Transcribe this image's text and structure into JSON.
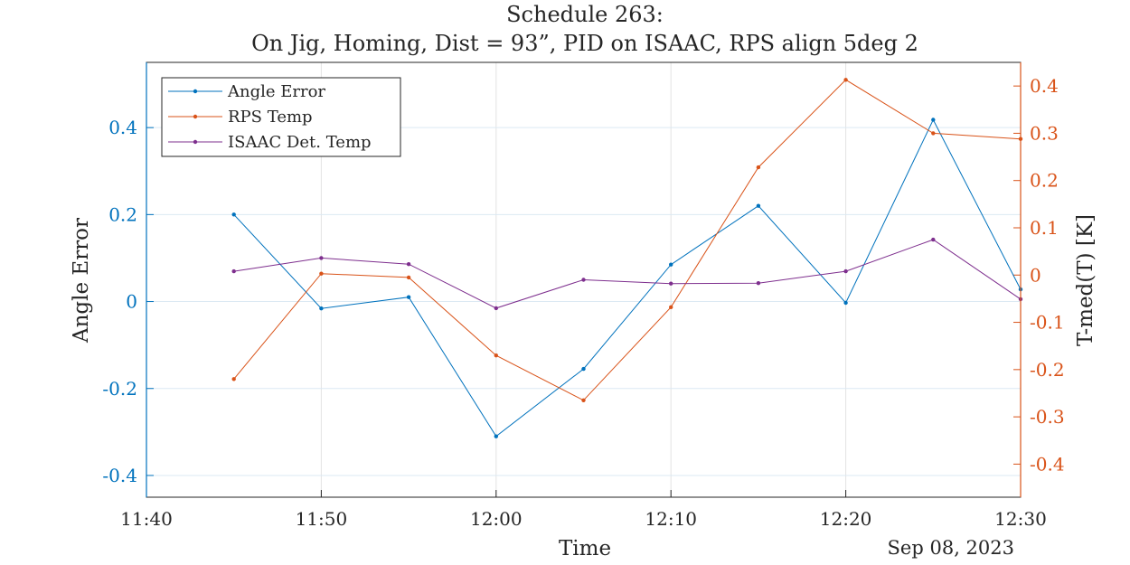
{
  "chart_data": {
    "type": "line",
    "title": "Schedule 263:",
    "subtitle": "On Jig, Homing, Dist = 93”, PID on ISAAC, RPS align 5deg 2",
    "xlabel": "Time",
    "date_label": "Sep 08, 2023",
    "x_ticks": [
      "11:40",
      "11:50",
      "12:00",
      "12:10",
      "12:20",
      "12:30"
    ],
    "xlim": [
      "11:40",
      "12:30"
    ],
    "x": [
      "11:45",
      "11:50",
      "11:55",
      "12:00",
      "12:05",
      "12:10",
      "12:15",
      "12:20",
      "12:25",
      "12:30"
    ],
    "left_axis": {
      "label": "Angle Error",
      "color": "#0072BD",
      "ylim": [
        -0.45,
        0.55
      ],
      "ticks": [
        -0.4,
        -0.2,
        0,
        0.2,
        0.4
      ],
      "tick_labels": [
        "-0.4",
        "-0.2",
        "0",
        "0.2",
        "0.4"
      ]
    },
    "right_axis": {
      "label": "T-med(T) [K]",
      "color": "#D95319",
      "ylim": [
        -0.47,
        0.45
      ],
      "ticks": [
        -0.4,
        -0.3,
        -0.2,
        -0.1,
        0,
        0.1,
        0.2,
        0.3,
        0.4
      ],
      "tick_labels": [
        "-0.4",
        "-0.3",
        "-0.2",
        "-0.1",
        "0",
        "0.1",
        "0.2",
        "0.3",
        "0.4"
      ]
    },
    "series": [
      {
        "name": "Angle Error",
        "axis": "left",
        "color": "#0072BD",
        "values": [
          0.2,
          -0.016,
          0.01,
          -0.31,
          -0.155,
          0.085,
          0.22,
          -0.003,
          0.418,
          0.028
        ]
      },
      {
        "name": "RPS Temp",
        "axis": "right",
        "color": "#D95319",
        "values": [
          -0.22,
          0.003,
          -0.005,
          -0.17,
          -0.265,
          -0.068,
          0.228,
          0.413,
          0.3,
          0.288
        ]
      },
      {
        "name": "ISAAC Det. Temp",
        "axis": "right",
        "color": "#7E2F8E",
        "values": [
          0.008,
          0.036,
          0.023,
          -0.07,
          -0.01,
          -0.018,
          -0.017,
          0.008,
          0.075,
          -0.051
        ]
      }
    ],
    "grid": true,
    "legend_position": "top-left"
  }
}
